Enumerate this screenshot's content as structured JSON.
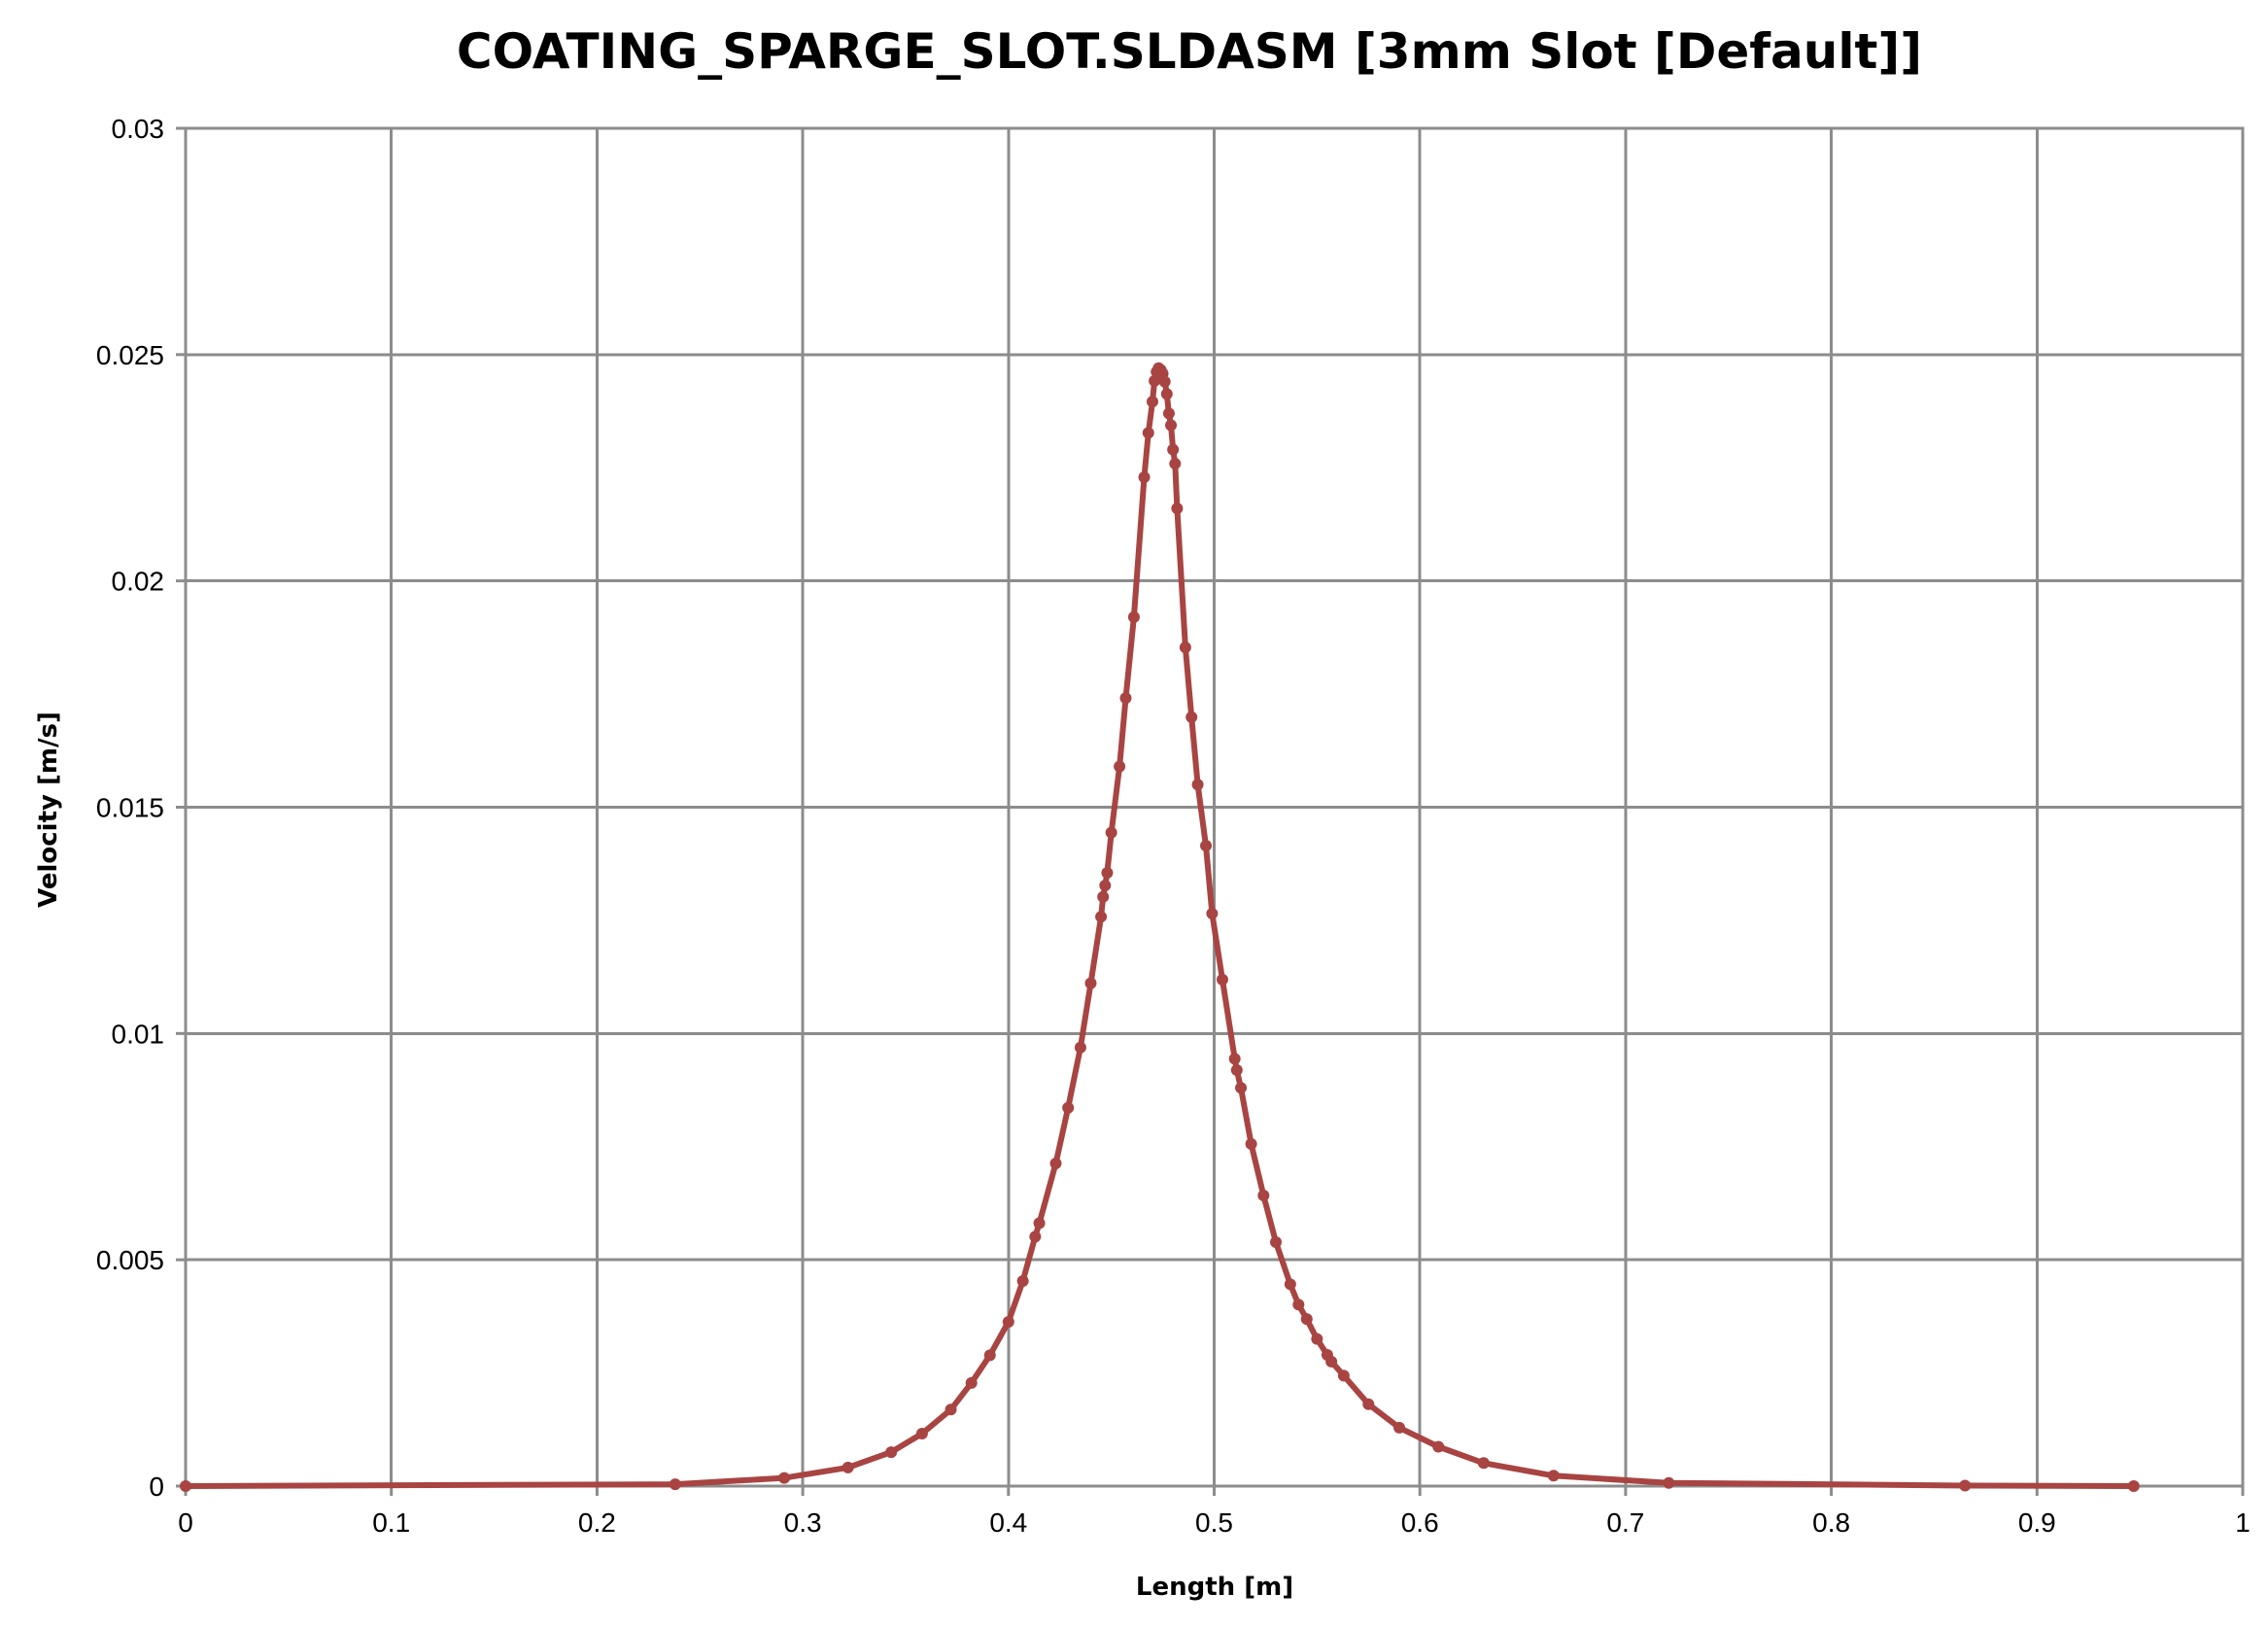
{
  "chart_data": {
    "type": "line",
    "title": "COATING_SPARGE_SLOT.SLDASM [3mm Slot [Default]]",
    "xlabel": "Length [m]",
    "ylabel": "Velocity [m/s]",
    "xlim": [
      0,
      1
    ],
    "ylim": [
      0,
      0.03
    ],
    "x_ticks": [
      "0",
      "0.1",
      "0.2",
      "0.3",
      "0.4",
      "0.5",
      "0.6",
      "0.7",
      "0.8",
      "0.9",
      "1"
    ],
    "y_ticks": [
      "0",
      "0.005",
      "0.01",
      "0.015",
      "0.02",
      "0.025",
      "0.03"
    ],
    "x_tick_values": [
      0,
      0.1,
      0.2,
      0.3,
      0.4,
      0.5,
      0.6,
      0.7,
      0.8,
      0.9,
      1
    ],
    "y_tick_values": [
      0,
      0.005,
      0.01,
      0.015,
      0.02,
      0.025,
      0.03
    ],
    "grid": true,
    "legend": "none",
    "series": [
      {
        "color": "#a84442",
        "points": [
          [
            0.0,
            0.0
          ],
          [
            0.238,
            4e-05
          ],
          [
            0.291,
            0.00018
          ],
          [
            0.322,
            0.00041
          ],
          [
            0.343,
            0.00075
          ],
          [
            0.358,
            0.00116
          ],
          [
            0.372,
            0.00169
          ],
          [
            0.382,
            0.00228
          ],
          [
            0.391,
            0.00289
          ],
          [
            0.4,
            0.00363
          ],
          [
            0.407,
            0.00453
          ],
          [
            0.413,
            0.00551
          ],
          [
            0.415,
            0.00581
          ],
          [
            0.423,
            0.00713
          ],
          [
            0.429,
            0.00836
          ],
          [
            0.435,
            0.00969
          ],
          [
            0.44,
            0.01111
          ],
          [
            0.445,
            0.01258
          ],
          [
            0.446,
            0.01302
          ],
          [
            0.447,
            0.01327
          ],
          [
            0.448,
            0.01355
          ],
          [
            0.45,
            0.01444
          ],
          [
            0.454,
            0.0159
          ],
          [
            0.457,
            0.01741
          ],
          [
            0.461,
            0.0192
          ],
          [
            0.466,
            0.02229
          ],
          [
            0.468,
            0.02327
          ],
          [
            0.47,
            0.02396
          ],
          [
            0.471,
            0.02442
          ],
          [
            0.472,
            0.02462
          ],
          [
            0.473,
            0.0247
          ],
          [
            0.474,
            0.02466
          ],
          [
            0.475,
            0.02458
          ],
          [
            0.476,
            0.0244
          ],
          [
            0.477,
            0.02413
          ],
          [
            0.478,
            0.0237
          ],
          [
            0.479,
            0.02344
          ],
          [
            0.48,
            0.0229
          ],
          [
            0.481,
            0.02259
          ],
          [
            0.482,
            0.0216
          ],
          [
            0.486,
            0.01853
          ],
          [
            0.489,
            0.01699
          ],
          [
            0.492,
            0.0155
          ],
          [
            0.496,
            0.01415
          ],
          [
            0.499,
            0.01265
          ],
          [
            0.504,
            0.01119
          ],
          [
            0.51,
            0.00944
          ],
          [
            0.511,
            0.00919
          ],
          [
            0.513,
            0.0088
          ],
          [
            0.518,
            0.00756
          ],
          [
            0.524,
            0.00642
          ],
          [
            0.53,
            0.00539
          ],
          [
            0.537,
            0.00446
          ],
          [
            0.541,
            0.00401
          ],
          [
            0.545,
            0.00369
          ],
          [
            0.55,
            0.00325
          ],
          [
            0.555,
            0.0029
          ],
          [
            0.557,
            0.00275
          ],
          [
            0.563,
            0.00244
          ],
          [
            0.575,
            0.00181
          ],
          [
            0.59,
            0.00129
          ],
          [
            0.609,
            0.00087
          ],
          [
            0.631,
            0.00051
          ],
          [
            0.665,
            0.00023
          ],
          [
            0.721,
            7e-05
          ],
          [
            0.865,
            1e-05
          ],
          [
            0.947,
            0.0
          ]
        ]
      }
    ]
  }
}
